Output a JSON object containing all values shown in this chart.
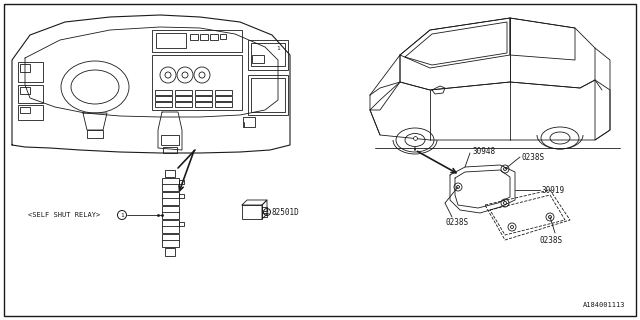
{
  "bg_color": "#ffffff",
  "line_color": "#1a1a1a",
  "figsize": [
    6.4,
    3.2
  ],
  "dpi": 100,
  "footer": "A184001113",
  "part_numbers": {
    "p30948": "30948",
    "p0238S_1": "0238S",
    "p30919": "30919",
    "p0238S_2": "0238S",
    "p0238S_3": "0238S",
    "relay_label": "<SELF SHUT RELAY>",
    "relay_num": "1",
    "box_num": "1",
    "box_label": "82501D"
  }
}
